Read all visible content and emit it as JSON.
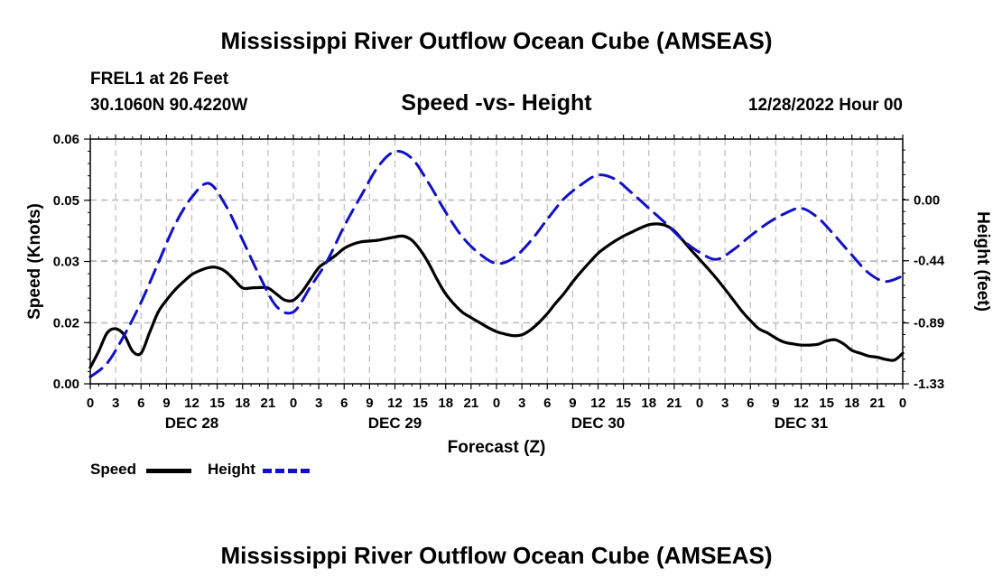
{
  "header": {
    "title": "Mississippi River Outflow Ocean Cube (AMSEAS)",
    "station": "FREL1 at 26 Feet",
    "coords": "30.1060N  90.4220W",
    "subtitle": "Speed -vs- Height",
    "timestamp": "12/28/2022 Hour 00"
  },
  "footer": {
    "title": "Mississippi River Outflow Ocean Cube (AMSEAS)"
  },
  "legend": {
    "speed_label": "Speed",
    "height_label": "Height"
  },
  "colors": {
    "speed": "#000000",
    "height": "#1010c8",
    "grid": "#bdbdbd"
  },
  "chart_data": {
    "type": "line",
    "title": "Speed -vs- Height",
    "xlabel": "Forecast (Z)",
    "ylabel": "Speed (Knots)",
    "y2label": "Height (feet)",
    "x_range": [
      0,
      96
    ],
    "ylim": [
      0,
      0.06
    ],
    "y2lim": [
      -1.33,
      0.44
    ],
    "y_ticks": [
      0,
      0.015,
      0.03,
      0.045,
      0.06
    ],
    "y_tick_labels": [
      "0.00",
      "0.02",
      "0.03",
      "0.05",
      "0.06"
    ],
    "y2_ticks": [
      -1.33,
      -0.89,
      -0.44,
      0.0
    ],
    "y2_tick_labels": [
      "-1.33",
      "-0.89",
      "-0.44",
      "0.00"
    ],
    "x_ticks": [
      0,
      3,
      6,
      9,
      12,
      15,
      18,
      21,
      24,
      27,
      30,
      33,
      36,
      39,
      42,
      45,
      48,
      51,
      54,
      57,
      60,
      63,
      66,
      69,
      72,
      75,
      78,
      81,
      84,
      87,
      90,
      93,
      96
    ],
    "x_tick_labels": [
      "0",
      "3",
      "6",
      "9",
      "12",
      "15",
      "18",
      "21",
      "0",
      "3",
      "6",
      "9",
      "12",
      "15",
      "18",
      "21",
      "0",
      "3",
      "6",
      "9",
      "12",
      "15",
      "18",
      "21",
      "0",
      "3",
      "6",
      "9",
      "12",
      "15",
      "18",
      "21",
      "0"
    ],
    "day_labels": [
      {
        "hour": 12,
        "label": "DEC 28"
      },
      {
        "hour": 36,
        "label": "DEC 29"
      },
      {
        "hour": 60,
        "label": "DEC 30"
      },
      {
        "hour": 84,
        "label": "DEC 31"
      }
    ],
    "series": [
      {
        "name": "Speed",
        "axis": "left",
        "style": "solid",
        "x": [
          0,
          1,
          2,
          3,
          4,
          5,
          6,
          7,
          8,
          9,
          10,
          11,
          12,
          13,
          14,
          15,
          16,
          17,
          18,
          19,
          20,
          21,
          22,
          23,
          24,
          25,
          26,
          27,
          28,
          29,
          30,
          31,
          32,
          33,
          34,
          35,
          36,
          37,
          38,
          39,
          40,
          41,
          42,
          43,
          44,
          45,
          46,
          47,
          48,
          49,
          50,
          51,
          52,
          53,
          54,
          55,
          56,
          57,
          58,
          59,
          60,
          61,
          62,
          63,
          64,
          65,
          66,
          67,
          68,
          69,
          70,
          71,
          72,
          73,
          74,
          75,
          76,
          77,
          78,
          79,
          80,
          81,
          82,
          83,
          84,
          85,
          86,
          87,
          88,
          89,
          90,
          91,
          92,
          93,
          94,
          95,
          96
        ],
        "values": [
          0.004,
          0.008,
          0.0125,
          0.0135,
          0.012,
          0.008,
          0.0075,
          0.0125,
          0.0175,
          0.0205,
          0.023,
          0.025,
          0.0268,
          0.0278,
          0.0285,
          0.0285,
          0.0275,
          0.0255,
          0.0235,
          0.0235,
          0.0236,
          0.0235,
          0.022,
          0.0205,
          0.0205,
          0.0225,
          0.0255,
          0.0285,
          0.03,
          0.0315,
          0.0332,
          0.0342,
          0.0348,
          0.035,
          0.0352,
          0.0356,
          0.036,
          0.0362,
          0.0352,
          0.0328,
          0.0295,
          0.0255,
          0.022,
          0.0195,
          0.0175,
          0.0162,
          0.015,
          0.0138,
          0.0128,
          0.0122,
          0.0118,
          0.012,
          0.0132,
          0.015,
          0.0172,
          0.0198,
          0.0222,
          0.025,
          0.0275,
          0.0298,
          0.032,
          0.0336,
          0.035,
          0.0362,
          0.0372,
          0.0382,
          0.039,
          0.0392,
          0.0388,
          0.0375,
          0.0352,
          0.0328,
          0.0305,
          0.0282,
          0.0258,
          0.0232,
          0.0205,
          0.0178,
          0.0155,
          0.0135,
          0.0125,
          0.0112,
          0.0102,
          0.0098,
          0.0095,
          0.0095,
          0.0097,
          0.0105,
          0.0108,
          0.0098,
          0.0082,
          0.0075,
          0.0068,
          0.0065,
          0.006,
          0.0058,
          0.0075
        ]
      },
      {
        "name": "Height",
        "axis": "right",
        "style": "dashed",
        "x": [
          0,
          2,
          4,
          6,
          8,
          10,
          12,
          14,
          16,
          18,
          20,
          22,
          24,
          26,
          28,
          30,
          32,
          34,
          36,
          38,
          40,
          42,
          44,
          46,
          48,
          50,
          52,
          54,
          56,
          58,
          60,
          62,
          64,
          66,
          68,
          70,
          72,
          74,
          76,
          78,
          80,
          82,
          84,
          86,
          88,
          90,
          92,
          94,
          96
        ],
        "values": [
          -1.28,
          -1.18,
          -0.98,
          -0.74,
          -0.46,
          -0.18,
          0.02,
          0.12,
          -0.04,
          -0.29,
          -0.55,
          -0.77,
          -0.81,
          -0.63,
          -0.44,
          -0.19,
          0.03,
          0.24,
          0.35,
          0.3,
          0.12,
          -0.09,
          -0.27,
          -0.39,
          -0.46,
          -0.42,
          -0.3,
          -0.14,
          0.01,
          0.11,
          0.18,
          0.15,
          0.05,
          -0.06,
          -0.17,
          -0.29,
          -0.38,
          -0.43,
          -0.36,
          -0.26,
          -0.17,
          -0.1,
          -0.06,
          -0.13,
          -0.26,
          -0.4,
          -0.53,
          -0.59,
          -0.55
        ]
      }
    ]
  }
}
